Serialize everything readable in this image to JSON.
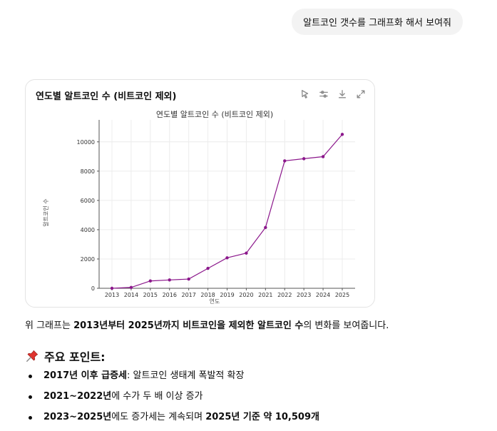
{
  "user_message": "알트코인 갯수를 그래프화 해서 보여줘",
  "chart_card": {
    "title": "연도별 알트코인 수 (비트코인 제외)",
    "tools": [
      "pointer-icon",
      "settings-icon",
      "download-icon",
      "expand-icon"
    ]
  },
  "chart_data": {
    "type": "line",
    "title": "연도별 알트코인 수 (비트코인 제외)",
    "xlabel": "연도",
    "ylabel": "알트코인 수",
    "x": [
      2013,
      2014,
      2015,
      2016,
      2017,
      2018,
      2019,
      2020,
      2021,
      2022,
      2023,
      2024,
      2025
    ],
    "values": [
      0,
      60,
      500,
      570,
      630,
      1360,
      2080,
      2400,
      4150,
      8700,
      8850,
      8990,
      10509
    ],
    "yticks": [
      0,
      2000,
      4000,
      6000,
      8000,
      10000
    ],
    "ylim": [
      0,
      11500
    ],
    "grid": true,
    "color": "#8b178b"
  },
  "caption": {
    "prefix": "위 그래프는 ",
    "bold1": "2013년부터 2025년까지 비트코인을 제외한 알트코인 수",
    "suffix": "의 변화를 보여줍니다."
  },
  "section": {
    "icon": "pushpin-icon",
    "title": "주요 포인트:"
  },
  "points": [
    {
      "bold": "2017년 이후 급증세",
      "rest": ": 알트코인 생태계 폭발적 확장"
    },
    {
      "bold": "2021~2022년",
      "rest": "에 수가 두 배 이상 증가"
    },
    {
      "bold": "2023~2025년",
      "rest": "에도 증가세는 계속되며 ",
      "bold2": "2025년 기준 약 10,509개"
    }
  ]
}
